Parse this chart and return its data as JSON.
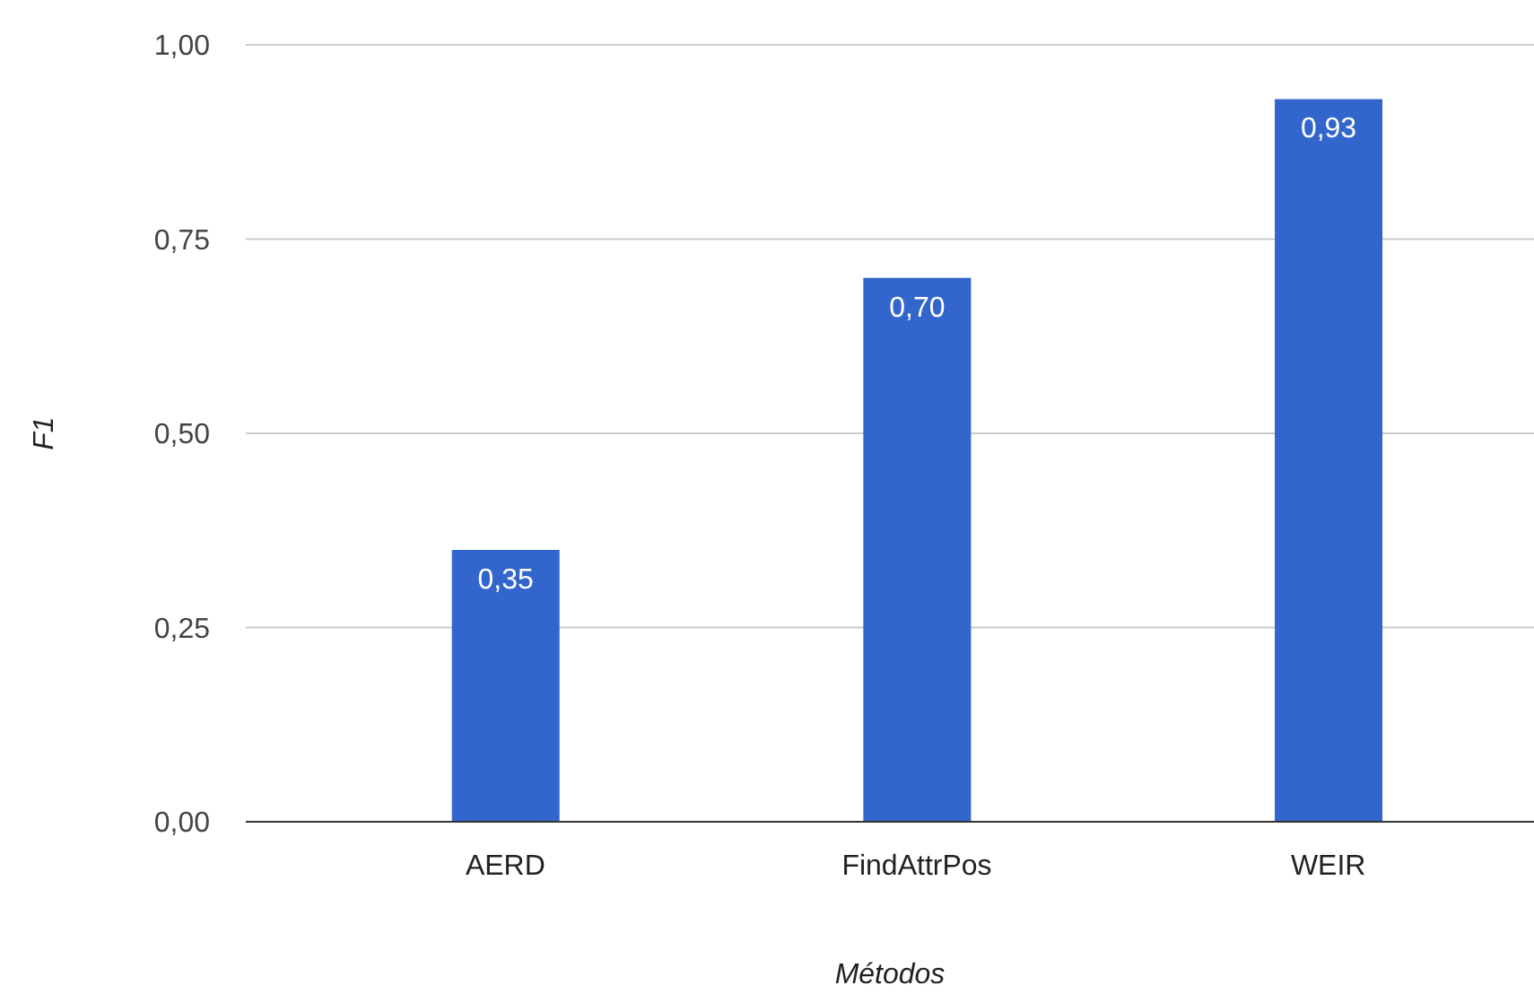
{
  "chart_data": {
    "type": "bar",
    "xlabel": "Métodos",
    "ylabel": "F1",
    "categories": [
      "AERD",
      "FindAttrPos",
      "WEIR"
    ],
    "values": [
      0.35,
      0.7,
      0.93
    ],
    "value_labels": [
      "0,35",
      "0,70",
      "0,93"
    ],
    "color": "#3366cc",
    "ylim": [
      0,
      1
    ],
    "yticks": [
      {
        "value": 0,
        "label": "0,00"
      },
      {
        "value": 0.25,
        "label": "0,25"
      },
      {
        "value": 0.5,
        "label": "0,50"
      },
      {
        "value": 0.75,
        "label": "0,75"
      },
      {
        "value": 1,
        "label": "1,00"
      }
    ],
    "grid": "y"
  }
}
